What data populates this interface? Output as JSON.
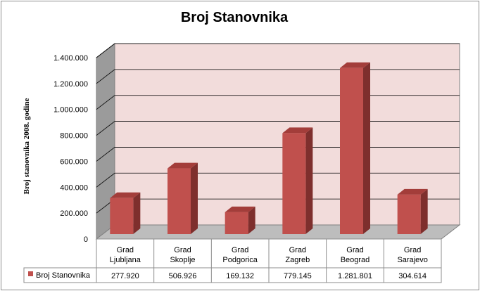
{
  "chart_data": {
    "type": "bar",
    "title": "Broj Stanovnika",
    "xlabel": "",
    "ylabel": "Broj stanovnika  2008. godine",
    "ylim": [
      0,
      1400000
    ],
    "yticks": [
      0,
      200000,
      400000,
      600000,
      800000,
      1000000,
      1200000,
      1400000
    ],
    "ytick_labels": [
      "0",
      "200.000",
      "400.000",
      "600.000",
      "800.000",
      "1.000.000",
      "1.200.000",
      "1.400.000"
    ],
    "grid": true,
    "three_d": true,
    "categories": [
      [
        "Grad",
        "Ljubljana"
      ],
      [
        "Grad",
        "Skoplje"
      ],
      [
        "Grad",
        "Podgorica"
      ],
      [
        "Grad",
        "Zagreb"
      ],
      [
        "Grad",
        "Beograd"
      ],
      [
        "Grad",
        "Sarajevo"
      ]
    ],
    "series": [
      {
        "name": "Broj Stanovnika",
        "values": [
          277920,
          506926,
          169132,
          779145,
          1281801,
          304614
        ],
        "value_labels": [
          "277.920",
          "506.926",
          "169.132",
          "779.145",
          "1.281.801",
          "304.614"
        ],
        "color": "#c0504d"
      }
    ],
    "legend": "data-table",
    "colors": {
      "back_wall": "#f2dcdb",
      "side_wall": "#9b9b9b",
      "floor": "#bdbdbd",
      "bar_front": "#c0504d",
      "bar_side": "#7e2f2d",
      "bar_top": "#a33d3a"
    }
  }
}
